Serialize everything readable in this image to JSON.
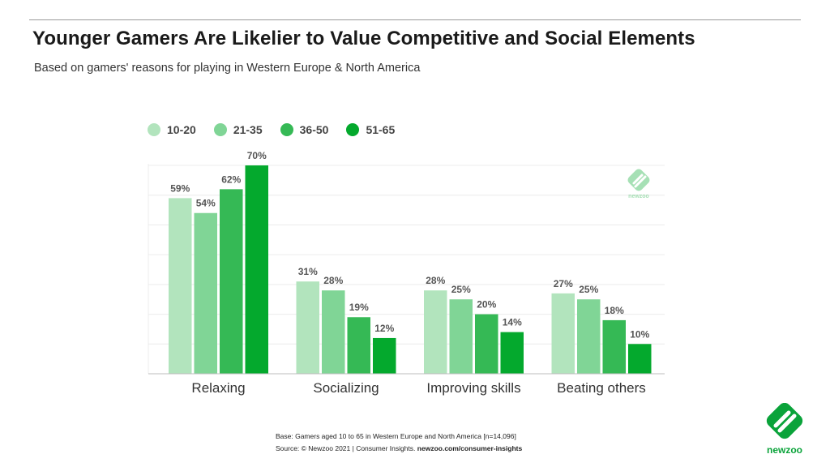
{
  "title": "Younger Gamers Are Likelier to Value Competitive and Social Elements",
  "subtitle": "Based on gamers' reasons for playing in Western Europe & North America",
  "footnote": {
    "base": "Base: Gamers aged 10 to 65 in Western Europe and North America [n=14,096]",
    "source_prefix": "Source: © Newzoo 2021 | Consumer Insights.",
    "source_link": "newzoo.com/consumer-insights"
  },
  "brand": {
    "name": "newzoo",
    "color": "#0aa33a"
  },
  "colors": {
    "10-20": "#b2e4bd",
    "21-35": "#80d596",
    "36-50": "#35b955",
    "51-65": "#04a92d"
  },
  "chart_data": {
    "type": "bar",
    "categories": [
      "Relaxing",
      "Socializing",
      "Improving skills",
      "Beating others"
    ],
    "series": [
      {
        "name": "10-20",
        "values": [
          59,
          31,
          28,
          27
        ],
        "color": "#b2e4bd"
      },
      {
        "name": "21-35",
        "values": [
          54,
          28,
          25,
          25
        ],
        "color": "#80d596"
      },
      {
        "name": "36-50",
        "values": [
          62,
          19,
          20,
          18
        ],
        "color": "#35b955"
      },
      {
        "name": "51-65",
        "values": [
          70,
          12,
          14,
          10
        ],
        "color": "#04a92d"
      }
    ],
    "value_suffix": "%",
    "ylim": [
      0,
      70
    ],
    "grid": true,
    "legend": "top-left",
    "data_labels": true
  }
}
